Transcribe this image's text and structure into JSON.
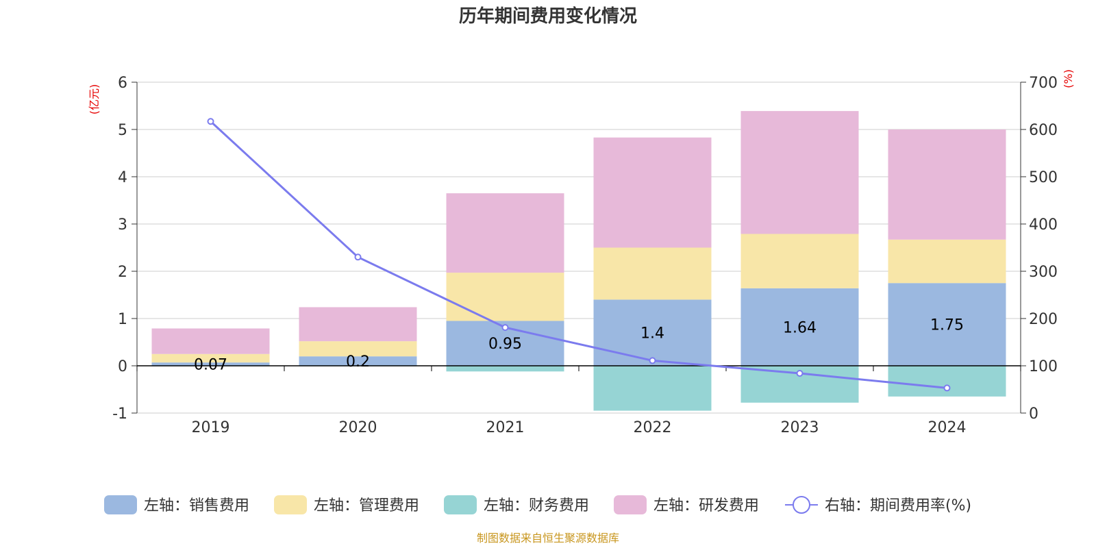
{
  "chart_data": {
    "type": "bar",
    "title": "历年期间费用变化情况",
    "categories": [
      "2019",
      "2020",
      "2021",
      "2022",
      "2023",
      "2024"
    ],
    "left_axis": {
      "unit": "(亿元)",
      "ylim": [
        -1,
        6
      ],
      "ticks": [
        -1,
        0,
        1,
        2,
        3,
        4,
        5,
        6
      ]
    },
    "right_axis": {
      "unit": "(%)",
      "ylim": [
        0,
        700
      ],
      "ticks": [
        0,
        100,
        200,
        300,
        400,
        500,
        600,
        700
      ]
    },
    "series": [
      {
        "name": "左轴：销售费用",
        "type": "bar",
        "axis": "left",
        "color": "#9bb8e0",
        "values": [
          0.07,
          0.2,
          0.95,
          1.4,
          1.64,
          1.75
        ],
        "labels": [
          "0.07",
          "0.2",
          "0.95",
          "1.4",
          "1.64",
          "1.75"
        ]
      },
      {
        "name": "左轴：管理费用",
        "type": "bar",
        "axis": "left",
        "color": "#f8e6a8",
        "values": [
          0.18,
          0.32,
          1.02,
          1.1,
          1.15,
          0.92
        ]
      },
      {
        "name": "左轴：财务费用",
        "type": "bar",
        "axis": "left",
        "color": "#96d4d4",
        "values": [
          -0.01,
          -0.01,
          -0.12,
          -0.95,
          -0.78,
          -0.65
        ]
      },
      {
        "name": "左轴：研发费用",
        "type": "bar",
        "axis": "left",
        "color": "#e7b9d9",
        "values": [
          0.54,
          0.72,
          1.68,
          2.33,
          2.6,
          2.33
        ]
      },
      {
        "name": "右轴：期间费用率(%)",
        "type": "line",
        "axis": "right",
        "color": "#7b7bee",
        "values": [
          617,
          330,
          181,
          111,
          84,
          53
        ]
      }
    ],
    "legend_position": "bottom",
    "grid": true
  },
  "source_note": "制图数据来自恒生聚源数据库"
}
